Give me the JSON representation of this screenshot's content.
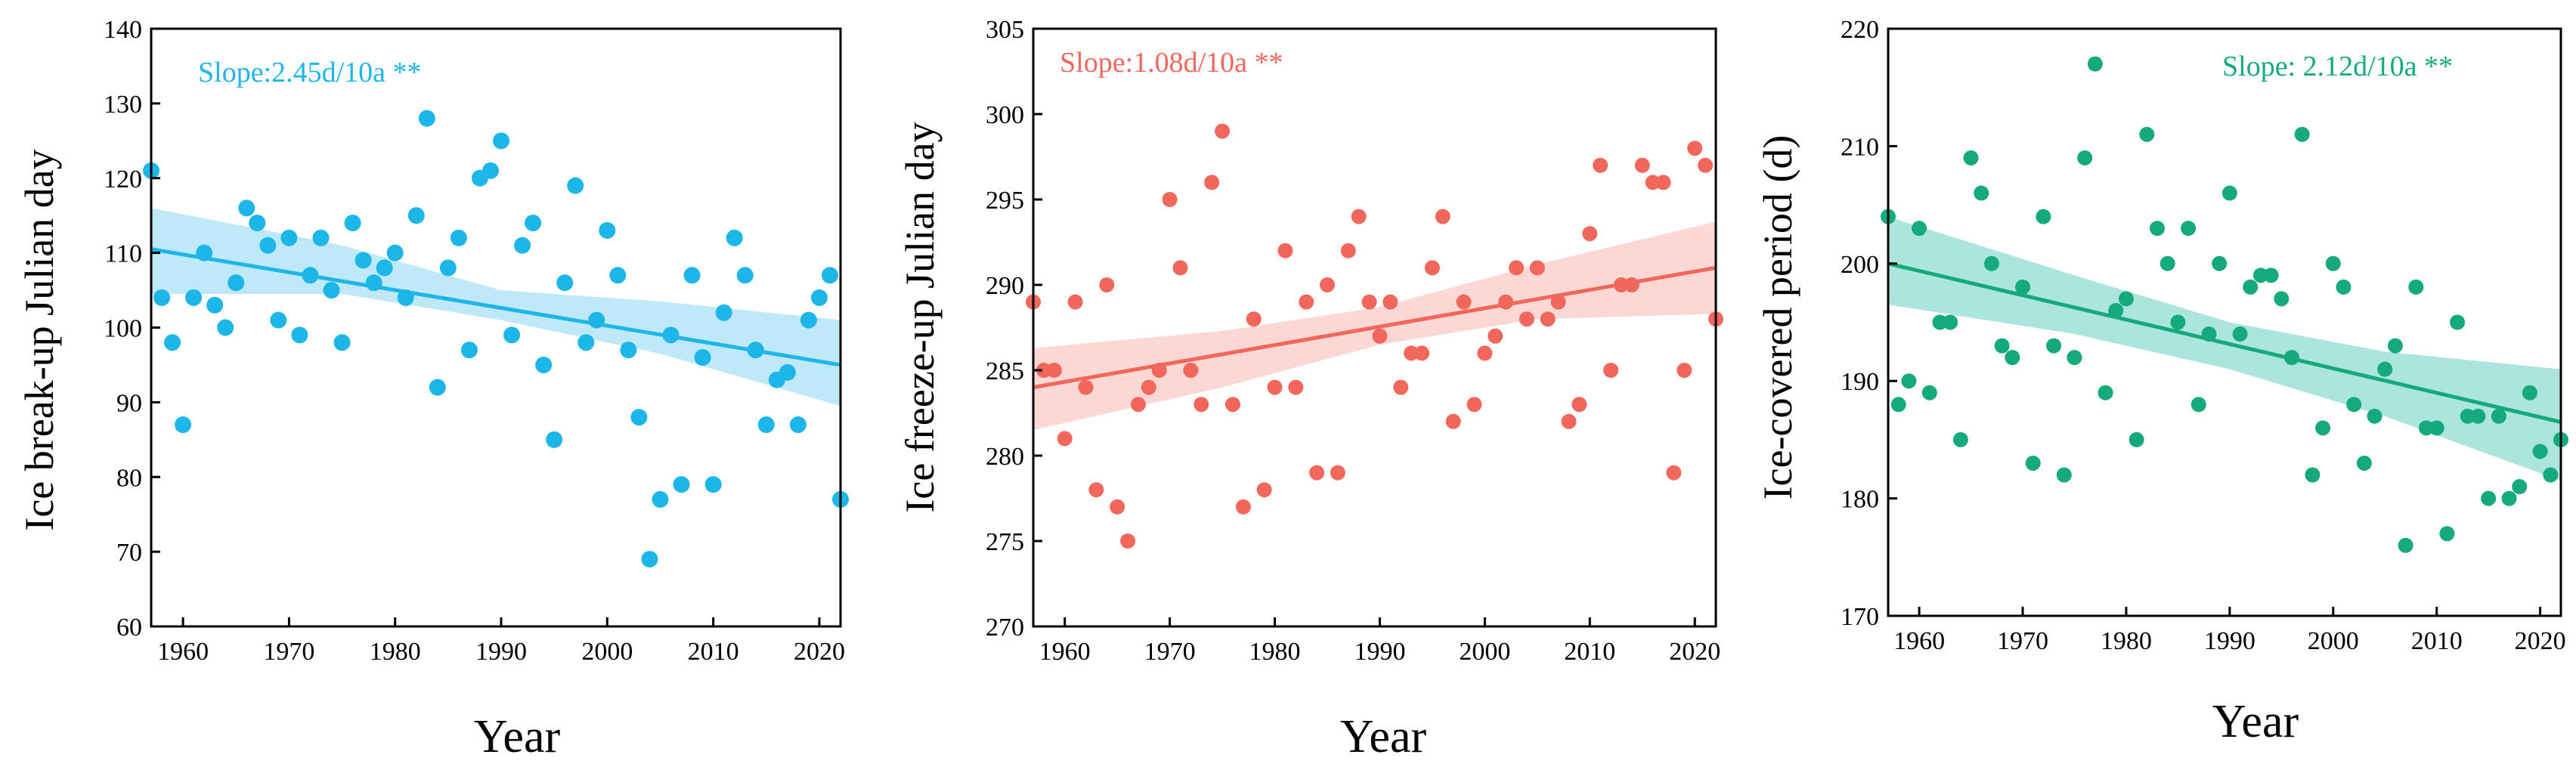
{
  "chart_data": [
    {
      "type": "scatter",
      "title": "",
      "xlabel": "Year",
      "ylabel": "Ice break-up Julian day",
      "xlim": [
        1957,
        2022
      ],
      "ylim": [
        60,
        140
      ],
      "xticks": [
        1960,
        1970,
        1980,
        1990,
        2000,
        2010,
        2020
      ],
      "yticks": [
        60,
        70,
        80,
        90,
        100,
        110,
        120,
        130,
        140
      ],
      "annotation": "Slope:2.45d/10a **",
      "color": "#1cb6e8",
      "band_color": "#a9e2f5",
      "trend": {
        "start": [
          1957,
          110.5
        ],
        "end": [
          2022,
          95
        ]
      },
      "band": [
        [
          1957,
          104.5,
          116
        ],
        [
          1975,
          104.5,
          111
        ],
        [
          1990,
          101,
          105
        ],
        [
          2005,
          96.5,
          103.5
        ],
        [
          2022,
          89.5,
          101
        ]
      ],
      "x": [
        1957,
        1958,
        1959,
        1960,
        1961,
        1962,
        1963,
        1964,
        1965,
        1966,
        1967,
        1968,
        1969,
        1970,
        1971,
        1972,
        1973,
        1974,
        1975,
        1976,
        1977,
        1978,
        1979,
        1980,
        1981,
        1982,
        1983,
        1984,
        1985,
        1986,
        1987,
        1988,
        1989,
        1990,
        1991,
        1992,
        1993,
        1994,
        1995,
        1996,
        1997,
        1998,
        1999,
        2000,
        2001,
        2002,
        2003,
        2004,
        2005,
        2006,
        2007,
        2008,
        2009,
        2010,
        2011,
        2012,
        2013,
        2014,
        2015,
        2016,
        2017,
        2018,
        2019,
        2020,
        2021,
        2022
      ],
      "y": [
        121,
        104,
        98,
        87,
        104,
        110,
        103,
        100,
        106,
        116,
        114,
        111,
        101,
        112,
        99,
        107,
        112,
        105,
        98,
        114,
        109,
        106,
        108,
        110,
        104,
        115,
        128,
        92,
        108,
        112,
        97,
        120,
        121,
        125,
        99,
        111,
        114,
        95,
        85,
        106,
        119,
        98,
        101,
        113,
        107,
        97,
        88,
        69,
        77,
        99,
        79,
        107,
        96,
        79,
        102,
        112,
        107,
        97,
        87,
        93,
        94,
        87,
        101,
        104,
        107,
        77
      ]
    },
    {
      "type": "scatter",
      "title": "",
      "xlabel": "Year",
      "ylabel": "Ice freeze-up Julian day",
      "xlim": [
        1957,
        2022
      ],
      "ylim": [
        270,
        305
      ],
      "xticks": [
        1960,
        1970,
        1980,
        1990,
        2000,
        2010,
        2020
      ],
      "yticks": [
        270,
        275,
        280,
        285,
        290,
        295,
        300,
        305
      ],
      "annotation": "Slope:1.08d/10a **",
      "color": "#f2675c",
      "band_color": "#fbcbc6",
      "trend": {
        "start": [
          1957,
          284
        ],
        "end": [
          2022,
          291
        ]
      },
      "band": [
        [
          1957,
          281.5,
          286.3
        ],
        [
          1975,
          284,
          287.3
        ],
        [
          1990,
          286.5,
          288.7
        ],
        [
          2005,
          288,
          291.2
        ],
        [
          2022,
          288.3,
          293.7
        ]
      ],
      "x": [
        1957,
        1958,
        1959,
        1960,
        1961,
        1962,
        1963,
        1964,
        1965,
        1966,
        1967,
        1968,
        1969,
        1970,
        1971,
        1972,
        1973,
        1974,
        1975,
        1976,
        1977,
        1978,
        1979,
        1980,
        1981,
        1982,
        1983,
        1984,
        1985,
        1986,
        1987,
        1988,
        1989,
        1990,
        1991,
        1992,
        1993,
        1994,
        1995,
        1996,
        1997,
        1998,
        1999,
        2000,
        2001,
        2002,
        2003,
        2004,
        2005,
        2006,
        2007,
        2008,
        2009,
        2010,
        2011,
        2012,
        2013,
        2014,
        2015,
        2016,
        2017,
        2018,
        2019,
        2020,
        2021,
        2022
      ],
      "y": [
        289,
        285,
        285,
        281,
        289,
        284,
        278,
        290,
        277,
        275,
        283,
        284,
        285,
        295,
        291,
        285,
        283,
        296,
        299,
        283,
        277,
        288,
        278,
        284,
        292,
        284,
        289,
        279,
        290,
        279,
        292,
        294,
        289,
        287,
        289,
        284,
        286,
        286,
        291,
        294,
        282,
        289,
        283,
        286,
        287,
        289,
        291,
        288,
        291,
        288,
        289,
        282,
        283,
        293,
        297,
        285,
        290,
        290,
        297,
        296,
        296,
        279,
        285,
        298,
        297,
        288
      ]
    },
    {
      "type": "scatter",
      "title": "",
      "xlabel": "Year",
      "ylabel": "Ice-covered period (d)",
      "xlim": [
        1957,
        2022
      ],
      "ylim": [
        170,
        220
      ],
      "xticks": [
        1960,
        1970,
        1980,
        1990,
        2000,
        2010,
        2020
      ],
      "yticks": [
        170,
        180,
        190,
        200,
        210,
        220
      ],
      "annotation": "Slope: 2.12d/10a **",
      "color": "#15aa7c",
      "band_color": "#8fdcd2",
      "trend": {
        "start": [
          1957,
          200
        ],
        "end": [
          2022,
          186.5
        ]
      },
      "band": [
        [
          1957,
          196.5,
          204
        ],
        [
          1975,
          194,
          199
        ],
        [
          1990,
          191,
          195
        ],
        [
          2005,
          187,
          192.5
        ],
        [
          2022,
          181.5,
          191
        ]
      ],
      "x": [
        1957,
        1958,
        1959,
        1960,
        1961,
        1962,
        1963,
        1964,
        1965,
        1966,
        1967,
        1968,
        1969,
        1970,
        1971,
        1972,
        1973,
        1974,
        1975,
        1976,
        1977,
        1978,
        1979,
        1980,
        1981,
        1982,
        1983,
        1984,
        1985,
        1986,
        1987,
        1988,
        1989,
        1990,
        1991,
        1992,
        1993,
        1994,
        1995,
        1996,
        1997,
        1998,
        1999,
        2000,
        2001,
        2002,
        2003,
        2004,
        2005,
        2006,
        2007,
        2008,
        2009,
        2010,
        2011,
        2012,
        2013,
        2014,
        2015,
        2016,
        2017,
        2018,
        2019,
        2020,
        2021,
        2022
      ],
      "y": [
        204,
        188,
        190,
        203,
        189,
        195,
        195,
        185,
        209,
        206,
        200,
        193,
        192,
        198,
        183,
        204,
        193,
        182,
        192,
        209,
        217,
        189,
        196,
        197,
        185,
        211,
        203,
        200,
        195,
        203,
        188,
        194,
        200,
        206,
        194,
        198,
        199,
        199,
        197,
        192,
        211,
        182,
        186,
        200,
        198,
        188,
        183,
        187,
        191,
        193,
        176,
        198,
        186,
        186,
        177,
        195,
        187,
        187,
        180,
        187,
        180,
        181,
        189,
        184,
        182,
        185
      ]
    }
  ]
}
